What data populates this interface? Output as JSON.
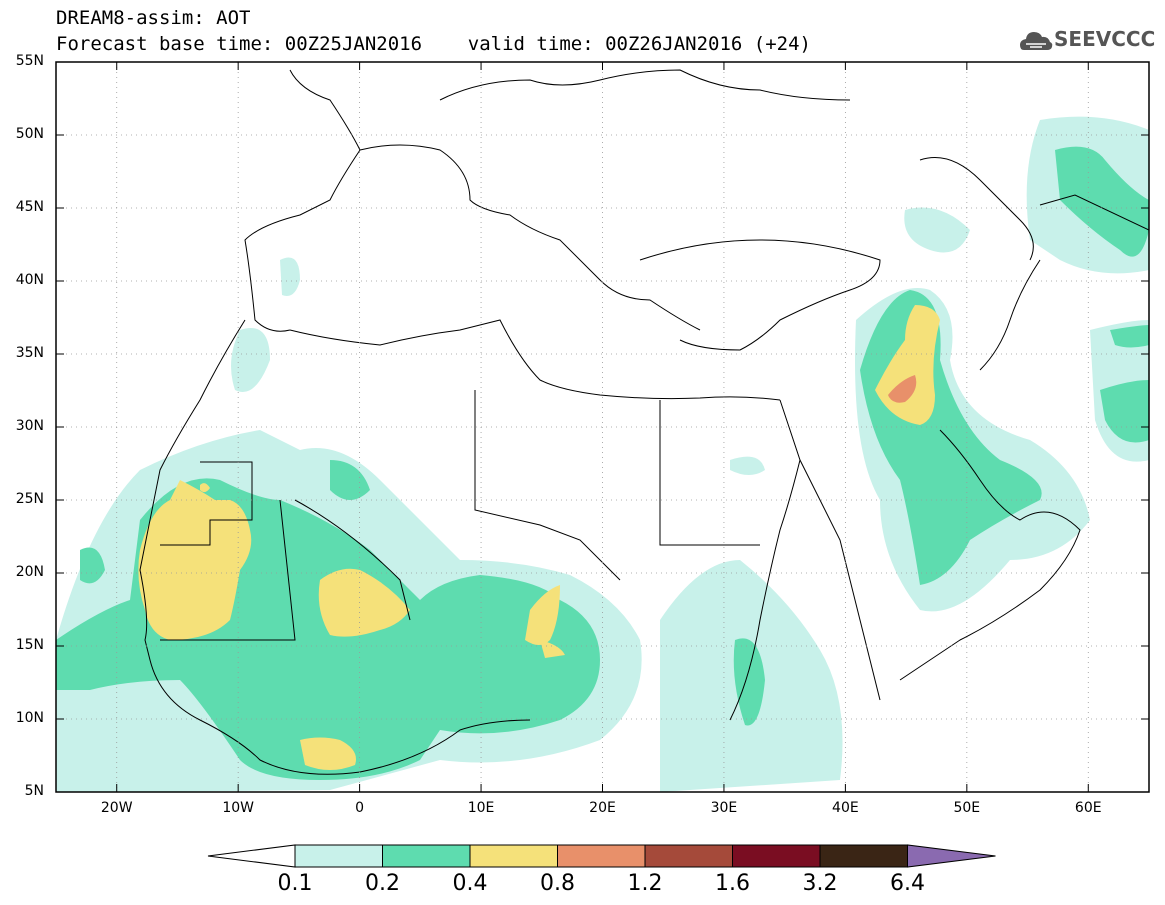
{
  "header": {
    "line1": "DREAM8-assim: AOT",
    "line2": "Forecast base time: 00Z25JAN2016    valid time: 00Z26JAN2016 (+24)"
  },
  "logo": {
    "text": "SEEVCCC",
    "icon": "cloud-icon"
  },
  "map": {
    "projection": "lat-lon",
    "lon_range": [
      -25,
      65
    ],
    "lat_range": [
      5,
      55
    ],
    "lat_labels": [
      "55N",
      "50N",
      "45N",
      "40N",
      "35N",
      "30N",
      "25N",
      "20N",
      "15N",
      "10N",
      "5N"
    ],
    "lon_labels": [
      "20W",
      "10W",
      "0",
      "10E",
      "20E",
      "30E",
      "40E",
      "50E",
      "60E"
    ],
    "variable": "AOT"
  },
  "colorbar": {
    "thresholds": [
      "0.1",
      "0.2",
      "0.4",
      "0.8",
      "1.2",
      "1.6",
      "3.2",
      "6.4"
    ],
    "colors": [
      "#ffffff",
      "#c8f1ea",
      "#5edcaf",
      "#f5e17a",
      "#e8906a",
      "#a54a3a",
      "#7a0d22",
      "#3a2515",
      "#8a6ab0"
    ]
  }
}
